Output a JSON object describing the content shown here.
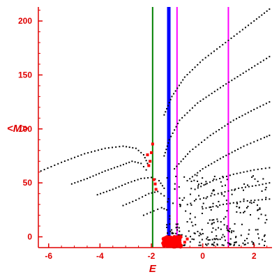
{
  "chart_data": {
    "type": "scatter",
    "xlabel": "E",
    "ylabel": "<M>",
    "xlim": [
      -6.4,
      2.7
    ],
    "ylim": [
      -10,
      213
    ],
    "x_ticks": [
      -6,
      -4,
      -2,
      0,
      2
    ],
    "y_ticks": [
      0,
      50,
      100,
      150,
      200
    ],
    "x_tick_labels": [
      "-6",
      "-4",
      "-2",
      "0",
      "2"
    ],
    "y_tick_labels": [
      "0",
      "50",
      "100",
      "150",
      "200"
    ],
    "grid": false,
    "colors": {
      "axis": "#e00000",
      "points": "#000000",
      "highlight": "#ff0000",
      "green_line": "#008000",
      "blue_line": "#0000ff",
      "magenta_line": "#ff00ff"
    },
    "vertical_lines": [
      {
        "x": -1.95,
        "color": "#008000"
      },
      {
        "x": -1.32,
        "color": "#0000ff"
      },
      {
        "x": -1.0,
        "color": "#ff00ff"
      },
      {
        "x": 1.0,
        "color": "#ff00ff"
      }
    ],
    "series": [
      {
        "color": "#000000",
        "curves": [
          [
            [
              -6.3,
              61
            ],
            [
              -5.5,
              69
            ],
            [
              -4.6,
              77
            ],
            [
              -3.8,
              82
            ],
            [
              -3.1,
              84
            ],
            [
              -2.6,
              82
            ],
            [
              -2.3,
              76
            ],
            [
              -2.15,
              68
            ]
          ],
          [
            [
              -5.1,
              49
            ],
            [
              -4.5,
              54
            ],
            [
              -3.8,
              61
            ],
            [
              -3.2,
              66
            ],
            [
              -2.75,
              70
            ],
            [
              -2.4,
              68
            ],
            [
              -2.2,
              62
            ]
          ],
          [
            [
              -4.1,
              39
            ],
            [
              -3.5,
              44
            ],
            [
              -2.9,
              50
            ],
            [
              -2.4,
              54
            ],
            [
              -2.0,
              55
            ],
            [
              -1.7,
              52
            ],
            [
              -1.5,
              45
            ]
          ],
          [
            [
              -3.1,
              29
            ],
            [
              -2.6,
              34
            ],
            [
              -2.1,
              40
            ],
            [
              -1.75,
              42
            ],
            [
              -1.5,
              38
            ]
          ],
          [
            [
              -2.3,
              20
            ],
            [
              -1.9,
              24
            ],
            [
              -1.6,
              27
            ],
            [
              -1.4,
              25
            ]
          ],
          [
            [
              -1.5,
              113
            ],
            [
              -1.2,
              130
            ],
            [
              -0.7,
              148
            ],
            [
              0.0,
              164
            ],
            [
              1.0,
              182
            ],
            [
              2.0,
              200
            ],
            [
              2.6,
              211
            ]
          ],
          [
            [
              -1.5,
              75
            ],
            [
              -1.3,
              90
            ],
            [
              -0.9,
              108
            ],
            [
              -0.2,
              124
            ],
            [
              0.8,
              140
            ],
            [
              1.8,
              155
            ],
            [
              2.6,
              167
            ]
          ],
          [
            [
              -1.1,
              63
            ],
            [
              -0.5,
              79
            ],
            [
              0.3,
              94
            ],
            [
              1.2,
              108
            ],
            [
              2.0,
              118
            ],
            [
              2.6,
              125
            ]
          ],
          [
            [
              -0.6,
              52
            ],
            [
              0.0,
              63
            ],
            [
              0.8,
              74
            ],
            [
              1.6,
              84
            ],
            [
              2.4,
              92
            ],
            [
              2.6,
              94
            ]
          ],
          [
            [
              -0.3,
              44
            ],
            [
              0.4,
              52
            ],
            [
              1.2,
              58
            ],
            [
              2.0,
              62
            ],
            [
              2.6,
              64
            ]
          ],
          [
            [
              -0.1,
              35
            ],
            [
              0.6,
              40
            ],
            [
              1.4,
              45
            ],
            [
              2.2,
              48
            ],
            [
              2.6,
              50
            ]
          ],
          [
            [
              0.0,
              26
            ],
            [
              0.8,
              30
            ],
            [
              1.6,
              33
            ],
            [
              2.6,
              35
            ]
          ]
        ]
      },
      {
        "color": "#ff0000",
        "points": [
          [
            -2.15,
            76
          ],
          [
            -2.0,
            78
          ],
          [
            -1.95,
            86
          ],
          [
            -2.05,
            70
          ],
          [
            -2.1,
            66
          ],
          [
            -1.9,
            53
          ],
          [
            -1.85,
            49
          ],
          [
            -1.82,
            44
          ],
          [
            -1.5,
            -6
          ],
          [
            -1.4,
            -3
          ],
          [
            -1.3,
            -7
          ],
          [
            -1.2,
            -4
          ],
          [
            -1.1,
            -5
          ],
          [
            -1.0,
            -2
          ],
          [
            -1.45,
            -8
          ],
          [
            -1.25,
            -9
          ],
          [
            -0.7,
            -5
          ],
          [
            -0.6,
            -2
          ]
        ]
      }
    ]
  }
}
